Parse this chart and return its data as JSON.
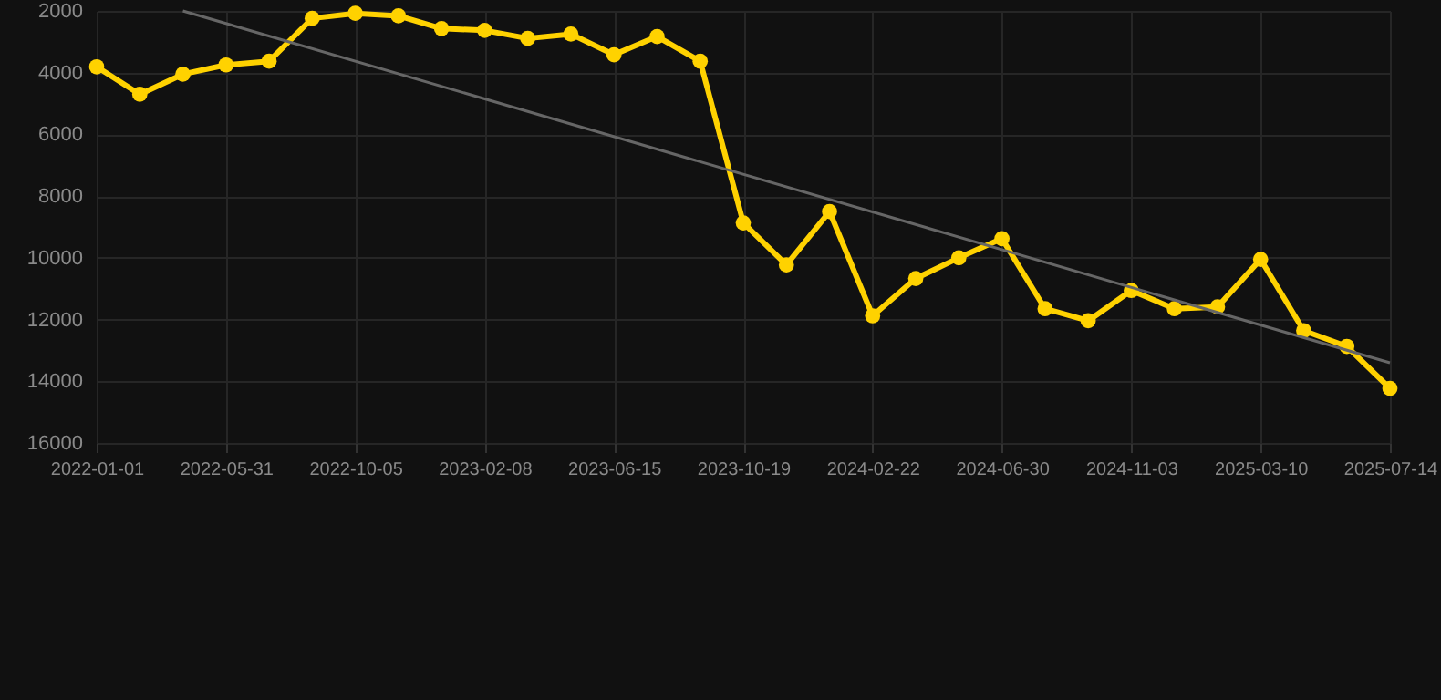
{
  "chart_data": {
    "type": "line",
    "categories": [
      "2022-01-01",
      null,
      null,
      "2022-05-31",
      null,
      null,
      "2022-10-05",
      null,
      null,
      "2023-02-08",
      null,
      null,
      "2023-06-15",
      null,
      null,
      "2023-10-19",
      null,
      null,
      "2024-02-22",
      null,
      null,
      "2024-06-30",
      null,
      null,
      "2024-11-03",
      null,
      null,
      "2025-03-10",
      null,
      null,
      "2025-07-14"
    ],
    "series": [
      {
        "color": "#ffd200",
        "marker": "circle",
        "values": [
          3810,
          4700,
          4050,
          3750,
          3630,
          2240,
          2080,
          2160,
          2570,
          2630,
          2890,
          2750,
          3420,
          2830,
          3630,
          8870,
          10230,
          8500,
          11880,
          10670,
          10000,
          9380,
          11650,
          12040,
          11060,
          11650,
          11590,
          10050,
          12360,
          12870,
          14230
        ]
      },
      {
        "type": "line",
        "color": "#666666",
        "marker": "none",
        "values": [
          null,
          null,
          2000,
          null,
          null,
          null,
          null,
          null,
          null,
          null,
          null,
          null,
          null,
          null,
          null,
          null,
          null,
          null,
          null,
          null,
          null,
          null,
          null,
          null,
          null,
          null,
          null,
          null,
          null,
          null,
          13400
        ]
      }
    ],
    "ylim": [
      16000,
      2000
    ],
    "yticks": [
      2000,
      4000,
      6000,
      8000,
      10000,
      12000,
      14000,
      16000
    ],
    "grid": true
  }
}
